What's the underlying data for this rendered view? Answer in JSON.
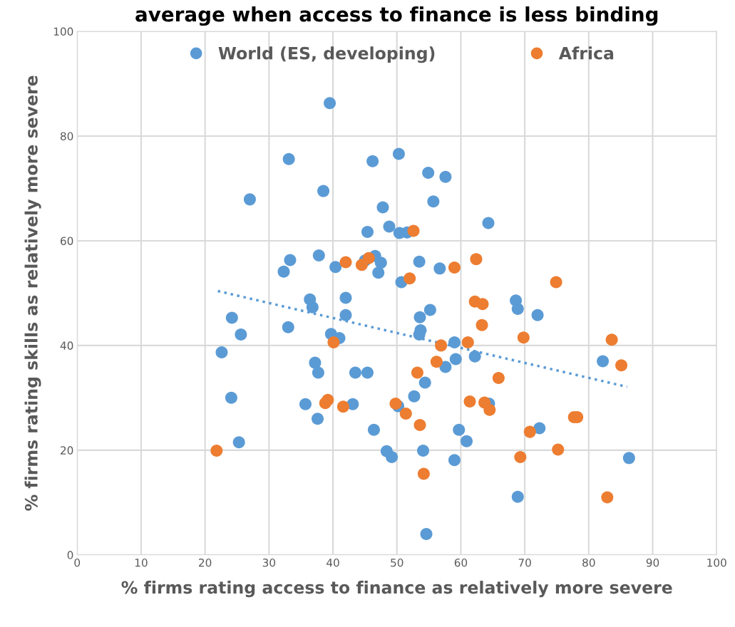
{
  "chart_data": {
    "type": "scatter",
    "title": "average when access to finance is less binding",
    "xlabel": "% firms rating access to finance as relatively more severe",
    "ylabel": "% firms rating skills as relatively more severe",
    "xlim": [
      0,
      100
    ],
    "xticks": [
      0,
      10,
      20,
      30,
      40,
      50,
      60,
      70,
      80,
      90,
      100
    ],
    "ylim": [
      0,
      100
    ],
    "yticks": [
      0,
      20,
      40,
      60,
      80,
      100
    ],
    "grid": true,
    "legend": "top",
    "marker": "circle",
    "series": [
      {
        "name": "World (ES, developing)",
        "color": "#5b9bd5",
        "x": [
          39.5,
          33.1,
          46.2,
          50.3,
          54.9,
          57.6,
          27.0,
          38.5,
          47.8,
          55.7,
          48.8,
          45.4,
          50.4,
          51.6,
          33.3,
          32.3,
          37.8,
          40.4,
          46.6,
          45.0,
          47.5,
          47.1,
          53.5,
          56.7,
          50.7,
          64.3,
          36.4,
          36.8,
          42.0,
          42.0,
          24.2,
          25.6,
          33.0,
          39.7,
          41.0,
          22.6,
          55.2,
          53.6,
          53.7,
          53.5,
          59.0,
          59.2,
          57.6,
          54.4,
          52.7,
          37.2,
          37.7,
          43.5,
          45.4,
          24.1,
          35.7,
          43.1,
          37.6,
          50.2,
          46.4,
          25.3,
          48.4,
          49.2,
          54.1,
          59.7,
          60.9,
          59.0,
          54.6,
          68.6,
          68.9,
          72.0,
          62.2,
          64.4,
          72.3,
          68.9,
          82.2,
          86.3
        ],
        "values": [
          86.3,
          75.6,
          75.2,
          76.6,
          73.0,
          72.2,
          67.9,
          69.5,
          66.4,
          67.5,
          62.7,
          61.7,
          61.5,
          61.6,
          56.3,
          54.1,
          57.2,
          55.0,
          57.1,
          56.2,
          55.8,
          53.9,
          56.0,
          54.7,
          52.1,
          63.4,
          48.8,
          47.3,
          49.1,
          45.8,
          45.3,
          42.1,
          43.5,
          42.2,
          41.4,
          38.7,
          46.8,
          45.4,
          42.9,
          42.1,
          40.6,
          37.4,
          35.9,
          32.9,
          30.3,
          36.7,
          34.8,
          34.8,
          34.8,
          30.0,
          28.8,
          28.8,
          26.0,
          28.4,
          23.9,
          21.5,
          19.8,
          18.7,
          19.9,
          23.9,
          21.7,
          18.1,
          4.0,
          48.6,
          47.0,
          45.8,
          37.9,
          28.9,
          24.2,
          11.1,
          37.0,
          18.5
        ]
      },
      {
        "name": "Africa",
        "color": "#ed7d31",
        "x": [
          52.6,
          42.0,
          45.6,
          44.5,
          59.0,
          62.4,
          52.0,
          40.1,
          56.9,
          61.1,
          62.2,
          63.4,
          63.3,
          56.2,
          53.2,
          39.2,
          38.8,
          41.6,
          49.8,
          51.4,
          53.6,
          21.8,
          54.2,
          74.9,
          69.8,
          65.9,
          61.4,
          63.7,
          64.5,
          69.3,
          70.8,
          75.2,
          77.7,
          78.2,
          82.9,
          83.6,
          85.1
        ],
        "values": [
          61.9,
          55.9,
          56.7,
          55.4,
          54.9,
          56.5,
          52.8,
          40.6,
          40.0,
          40.6,
          48.4,
          47.9,
          43.9,
          36.9,
          34.8,
          29.6,
          29.0,
          28.3,
          28.9,
          27.0,
          24.8,
          19.9,
          15.5,
          52.1,
          41.5,
          33.8,
          29.3,
          29.1,
          27.7,
          18.7,
          23.5,
          20.1,
          26.3,
          26.3,
          11.0,
          41.1,
          36.2
        ]
      },
      {
        "type": "line",
        "color": "#5b9bd5",
        "line_style": "dotted",
        "marker": "none",
        "x": [
          22.0,
          86.0
        ],
        "values": [
          50.4,
          32.1
        ]
      }
    ]
  }
}
